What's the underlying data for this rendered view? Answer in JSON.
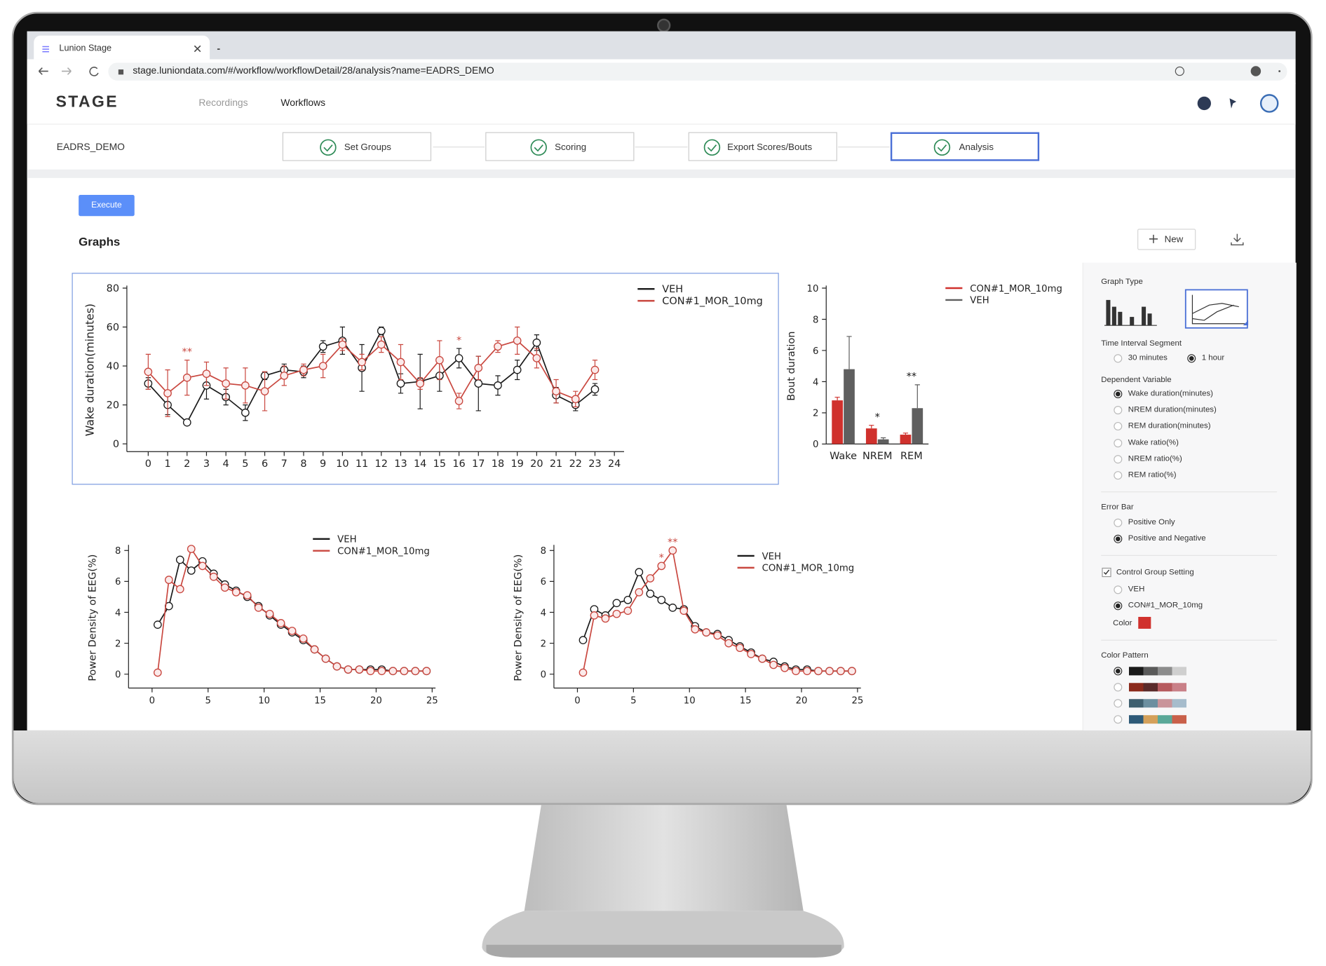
{
  "browser": {
    "tab_title": "Lunion Stage",
    "url": "stage.luniondata.com/#/workflow/workflowDetail/28/analysis?name=EADRS_DEMO"
  },
  "header": {
    "logo": "STAGE",
    "nav": [
      "Recordings",
      "Workflows"
    ]
  },
  "workflow": {
    "name": "EADRS_DEMO",
    "steps": [
      "Set Groups",
      "Scoring",
      "Export Scores/Bouts",
      "Analysis"
    ]
  },
  "toolbar": {
    "execute": "Execute",
    "section_title": "Graphs",
    "new_button": "New"
  },
  "sidebar": {
    "graph_type": {
      "label": "Graph Type"
    },
    "time_interval": {
      "label": "Time Interval Segment",
      "options": [
        "30 minutes",
        "1 hour"
      ],
      "selected": 1
    },
    "dependent_variable": {
      "label": "Dependent Variable",
      "options": [
        "Wake duration(minutes)",
        "NREM duration(minutes)",
        "REM duration(minutes)",
        "Wake ratio(%)",
        "NREM ratio(%)",
        "REM ratio(%)"
      ],
      "selected": 0
    },
    "error_bar": {
      "label": "Error Bar",
      "options": [
        "Positive Only",
        "Positive and Negative"
      ],
      "selected": 1
    },
    "control_group": {
      "label": "Control Group Setting",
      "checked": true,
      "options": [
        "VEH",
        "CON#1_MOR_10mg"
      ],
      "selected": 1,
      "color_label": "Color",
      "color": "#d0312d"
    },
    "color_pattern": {
      "label": "Color Pattern",
      "selected": 0,
      "patterns": [
        [
          "#1a1a1a",
          "#5a5a5a",
          "#8c8c8c",
          "#cfcfcf"
        ],
        [
          "#8b2a1c",
          "#5a2a2a",
          "#b65a5e",
          "#c98088"
        ],
        [
          "#3f5f6f",
          "#6c8fa0",
          "#c9949a",
          "#a6bccc"
        ],
        [
          "#2e5a78",
          "#d4a05a",
          "#5aa898",
          "#c9604a"
        ]
      ]
    }
  },
  "charts": [
    {
      "type": "line",
      "y_label": "Wake duration(minutes)",
      "x": [
        0,
        1,
        2,
        3,
        4,
        5,
        6,
        7,
        8,
        9,
        10,
        11,
        12,
        13,
        14,
        15,
        16,
        17,
        18,
        19,
        20,
        21,
        22,
        23
      ],
      "xlim": [
        -1.1,
        24.5
      ],
      "xticks": [
        0,
        1,
        2,
        3,
        4,
        5,
        6,
        7,
        8,
        9,
        10,
        11,
        12,
        13,
        14,
        15,
        16,
        17,
        18,
        19,
        20,
        21,
        22,
        23,
        24
      ],
      "ylim": [
        -4,
        80
      ],
      "yticks": [
        0,
        20,
        40,
        60,
        80
      ],
      "series": [
        {
          "name": "VEH",
          "color": "#1a1a1a",
          "values": [
            31,
            20,
            11,
            30,
            24,
            16,
            35,
            38,
            37,
            50,
            53,
            39,
            58,
            31,
            32,
            35,
            44,
            31,
            30,
            38,
            52,
            25,
            20,
            28
          ],
          "errors": [
            3,
            5,
            1,
            7,
            4,
            4,
            2,
            3,
            3,
            3,
            7,
            12,
            2,
            5,
            14,
            8,
            5,
            14,
            5,
            5,
            4,
            4,
            3,
            3
          ]
        },
        {
          "name": "CON#1_MOR_10mg",
          "color": "#c9473f",
          "values": [
            37,
            26,
            34,
            36,
            31,
            30,
            27,
            35,
            38,
            40,
            51,
            42,
            51,
            42,
            31,
            43,
            22,
            39,
            50,
            53,
            44,
            27,
            23,
            38
          ],
          "errors": [
            9,
            12,
            9,
            6,
            8,
            9,
            10,
            5,
            3,
            6,
            3,
            4,
            4,
            9,
            3,
            10,
            4,
            6,
            3,
            7,
            5,
            6,
            4,
            5
          ]
        }
      ],
      "annotations": [
        {
          "text": "**",
          "x": 2,
          "color": "#c9473f"
        },
        {
          "text": "*",
          "x": 16,
          "color": "#c9473f"
        }
      ]
    },
    {
      "type": "bar",
      "y_label": "Bout duration",
      "categories": [
        "Wake",
        "NREM",
        "REM"
      ],
      "ylim": [
        0,
        10
      ],
      "yticks": [
        0,
        2,
        4,
        6,
        8,
        10
      ],
      "series": [
        {
          "name": "CON#1_MOR_10mg",
          "color": "#d0312d",
          "values": [
            2.8,
            1.0,
            0.6
          ],
          "errors": [
            0.2,
            0.2,
            0.1
          ]
        },
        {
          "name": "VEH",
          "color": "#5f5f5f",
          "values": [
            4.8,
            0.3,
            2.3
          ],
          "errors": [
            2.1,
            0.1,
            1.5
          ]
        }
      ],
      "annotations": [
        {
          "text": "*",
          "x": 1,
          "color": "#111111"
        },
        {
          "text": "**",
          "x": 2,
          "color": "#111111"
        }
      ]
    },
    {
      "type": "line",
      "y_label": "Power Density of EEG(%)",
      "x": [
        0.5,
        1.5,
        2.5,
        3.5,
        4.5,
        5.5,
        6.5,
        7.5,
        8.5,
        9.5,
        10.5,
        11.5,
        12.5,
        13.5,
        14.5,
        15.5,
        16.5,
        17.5,
        18.5,
        19.5,
        20.5,
        21.5,
        22.5,
        23.5,
        24.5
      ],
      "xlim": [
        -2.1,
        25.3
      ],
      "xticks": [
        0,
        5,
        10,
        15,
        20,
        25
      ],
      "ylim": [
        -0.9,
        8.2
      ],
      "yticks": [
        0,
        2,
        4,
        6,
        8
      ],
      "series": [
        {
          "name": "VEH",
          "color": "#1a1a1a",
          "values": [
            3.2,
            4.4,
            7.4,
            6.7,
            7.3,
            6.5,
            5.8,
            5.4,
            5.0,
            4.4,
            3.8,
            3.2,
            2.7,
            2.2,
            1.6,
            1.0,
            0.5,
            0.3,
            0.3,
            0.3,
            0.3,
            0.2,
            0.2,
            0.2,
            0.2
          ]
        },
        {
          "name": "CON#1_MOR_10mg",
          "color": "#c9473f",
          "values": [
            0.1,
            6.1,
            5.5,
            8.1,
            7.0,
            6.3,
            5.6,
            5.3,
            5.1,
            4.3,
            3.9,
            3.3,
            2.8,
            2.3,
            1.6,
            1.0,
            0.5,
            0.3,
            0.3,
            0.2,
            0.2,
            0.2,
            0.2,
            0.2,
            0.2
          ]
        }
      ]
    },
    {
      "type": "line",
      "y_label": "Power Density of EEG(%)",
      "x": [
        0.5,
        1.5,
        2.5,
        3.5,
        4.5,
        5.5,
        6.5,
        7.5,
        8.5,
        9.5,
        10.5,
        11.5,
        12.5,
        13.5,
        14.5,
        15.5,
        16.5,
        17.5,
        18.5,
        19.5,
        20.5,
        21.5,
        22.5,
        23.5,
        24.5
      ],
      "xlim": [
        -2.1,
        25.3
      ],
      "xticks": [
        0,
        5,
        10,
        15,
        20,
        25
      ],
      "ylim": [
        -0.9,
        8.2
      ],
      "yticks": [
        0,
        2,
        4,
        6,
        8
      ],
      "series": [
        {
          "name": "VEH",
          "color": "#1a1a1a",
          "values": [
            2.2,
            4.2,
            3.8,
            4.6,
            4.8,
            6.6,
            5.2,
            4.8,
            4.3,
            4.2,
            3.1,
            2.7,
            2.6,
            2.2,
            1.8,
            1.4,
            1.0,
            0.8,
            0.5,
            0.3,
            0.3,
            0.2,
            0.2,
            0.2,
            0.2
          ]
        },
        {
          "name": "CON#1_MOR_10mg",
          "color": "#c9473f",
          "values": [
            0.1,
            3.8,
            3.6,
            3.9,
            4.1,
            5.3,
            6.2,
            7.0,
            8.0,
            4.1,
            2.9,
            2.7,
            2.5,
            2.0,
            1.7,
            1.3,
            1.0,
            0.6,
            0.4,
            0.2,
            0.2,
            0.2,
            0.2,
            0.2,
            0.2
          ]
        }
      ],
      "annotations": [
        {
          "text": "*",
          "x": 7.5,
          "color": "#c9473f"
        },
        {
          "text": "**",
          "x": 8.5,
          "color": "#c9473f"
        }
      ]
    }
  ]
}
